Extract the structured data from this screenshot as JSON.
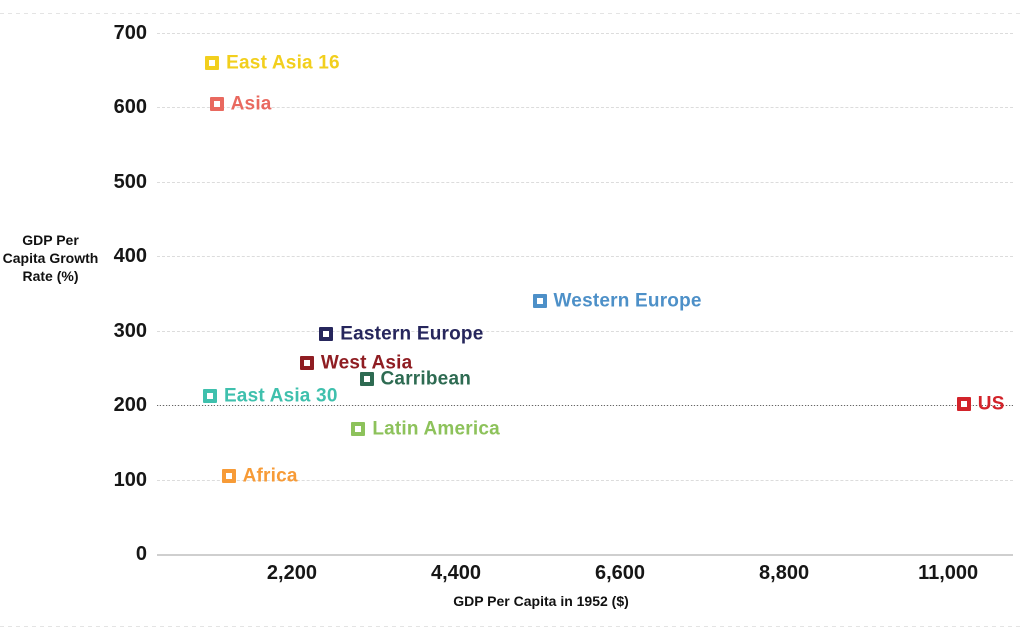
{
  "chart_data": {
    "type": "scatter",
    "title": "",
    "xlabel": "GDP Per Capita in 1952 ($)",
    "ylabel": "GDP Per Capita Growth Rate (%)",
    "ylabel_lines": [
      "GDP Per",
      "Capita Growth",
      "Rate (%)"
    ],
    "xlim": [
      390,
      11870
    ],
    "ylim": [
      0,
      700
    ],
    "grid": "horizontal-dashed",
    "legend_position": "none",
    "x_ticks": [
      {
        "value": 2200,
        "label": "2,200"
      },
      {
        "value": 4400,
        "label": "4,400"
      },
      {
        "value": 6600,
        "label": "6,600"
      },
      {
        "value": 8800,
        "label": "8,800"
      },
      {
        "value": 11000,
        "label": "11,000"
      }
    ],
    "y_ticks": [
      {
        "value": 0,
        "label": "0"
      },
      {
        "value": 100,
        "label": "100"
      },
      {
        "value": 200,
        "label": "200"
      },
      {
        "value": 300,
        "label": "300"
      },
      {
        "value": 400,
        "label": "400"
      },
      {
        "value": 500,
        "label": "500"
      },
      {
        "value": 600,
        "label": "600"
      },
      {
        "value": 700,
        "label": "700"
      }
    ],
    "reference_line_y": 200,
    "points": [
      {
        "label": "East Asia 16",
        "x": 1130,
        "y": 660,
        "color": "#F2CF1D"
      },
      {
        "label": "Asia",
        "x": 1190,
        "y": 605,
        "color": "#E9695F"
      },
      {
        "label": "Western Europe",
        "x": 5520,
        "y": 340,
        "color": "#4D90C8"
      },
      {
        "label": "Eastern Europe",
        "x": 2660,
        "y": 295,
        "color": "#26265C"
      },
      {
        "label": "West Asia",
        "x": 2400,
        "y": 257,
        "color": "#8F1D22"
      },
      {
        "label": "Carribean",
        "x": 3200,
        "y": 235,
        "color": "#2E6B52"
      },
      {
        "label": "East Asia 30",
        "x": 1100,
        "y": 212,
        "color": "#3FC0AD"
      },
      {
        "label": "US",
        "x": 11210,
        "y": 202,
        "color": "#D2232A"
      },
      {
        "label": "Latin America",
        "x": 3090,
        "y": 168,
        "color": "#8DC25B"
      },
      {
        "label": "Africa",
        "x": 1350,
        "y": 105,
        "color": "#F79B37"
      }
    ]
  }
}
